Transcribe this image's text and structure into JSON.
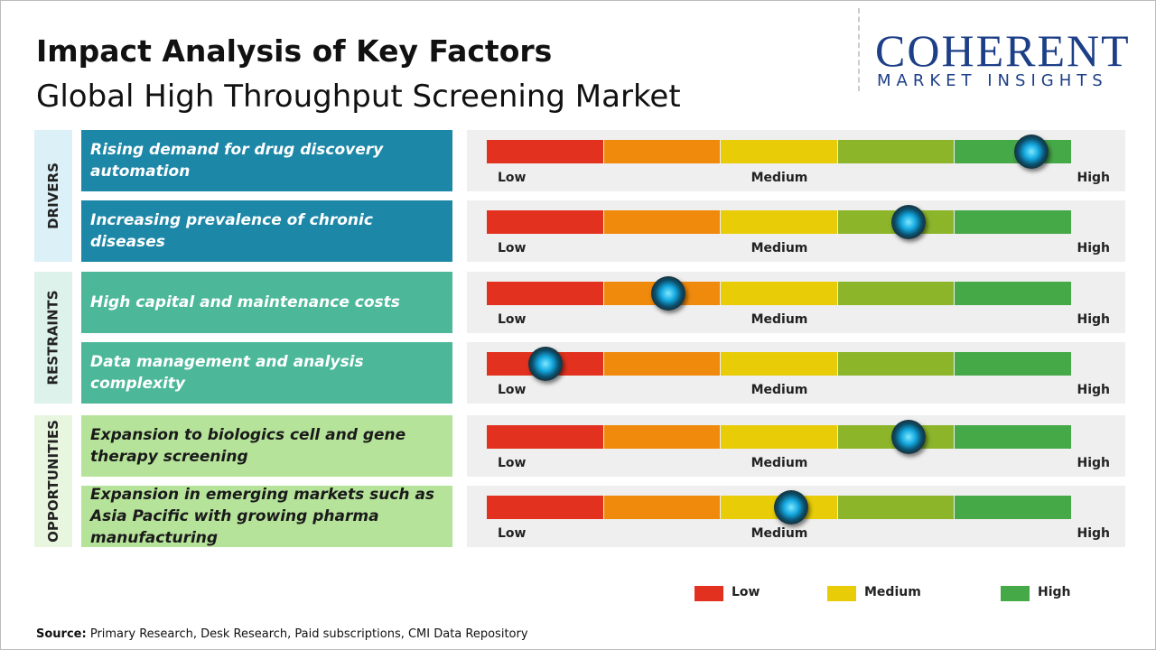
{
  "header": {
    "title": "Impact Analysis of Key Factors",
    "subtitle": "Global High Throughput Screening Market"
  },
  "logo": {
    "name": "COHERENT",
    "tagline": "MARKET INSIGHTS"
  },
  "chart_data": {
    "type": "gauge",
    "xlim": [
      0,
      100
    ],
    "xticks": [
      {
        "value": 0,
        "label": "Low"
      },
      {
        "value": 50,
        "label": "Medium"
      },
      {
        "value": 100,
        "label": "High"
      }
    ],
    "segment_colors": [
      "#e2321f",
      "#ef8a0c",
      "#e8cc08",
      "#8cb52a",
      "#46a948"
    ],
    "groups": [
      {
        "name": "DRIVERS",
        "color": "#1d87a7",
        "text_color": "#ffffff",
        "band": "#dcf0f8",
        "factors": [
          {
            "label": "Rising demand for drug discovery automation",
            "value": 93
          },
          {
            "label": "Increasing prevalence of chronic diseases",
            "value": 72
          }
        ]
      },
      {
        "name": "RESTRAINTS",
        "color": "#4cb899",
        "text_color": "#ffffff",
        "band": "#ddf2eb",
        "factors": [
          {
            "label": "High capital and maintenance costs",
            "value": 31
          },
          {
            "label": "Data management and analysis complexity",
            "value": 10
          }
        ]
      },
      {
        "name": "OPPORTUNITIES",
        "color": "#b6e39a",
        "text_color": "#1a1a1a",
        "band": "#e8f6df",
        "factors": [
          {
            "label": "Expansion to biologics cell and gene therapy screening",
            "value": 72
          },
          {
            "label": "Expansion in emerging markets such as Asia Pacific with growing pharma manufacturing",
            "value": 52
          }
        ]
      }
    ]
  },
  "legend": [
    {
      "name": "Low",
      "color": "#e2321f"
    },
    {
      "name": "Medium",
      "color": "#e8cc08"
    },
    {
      "name": "High",
      "color": "#46a948"
    }
  ],
  "source": {
    "label": "Source:",
    "text": "Primary Research, Desk Research, Paid subscriptions, CMI Data Repository"
  }
}
